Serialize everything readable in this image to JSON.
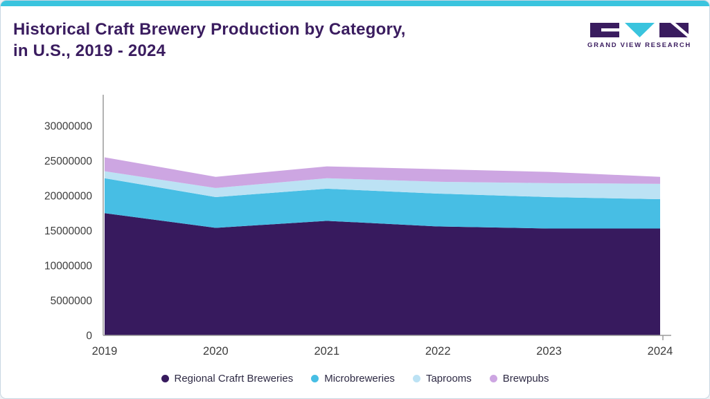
{
  "brand": {
    "purple": "#3a1c5f",
    "cyan": "#3ac4de"
  },
  "header": {
    "title_line1": "Historical Craft Brewery Production by Category,",
    "title_line2": "in U.S., 2019 - 2024",
    "logo_text": "GRAND VIEW RESEARCH"
  },
  "chart_data": {
    "type": "area",
    "stacked": true,
    "title": "Historical Craft Brewery Production by Category, in U.S., 2019 - 2024",
    "x": [
      2019,
      2020,
      2021,
      2022,
      2023,
      2024
    ],
    "series": [
      {
        "name": "Regional Crafrt Breweries",
        "color": "#371a5e",
        "values": [
          17500000,
          15400000,
          16400000,
          15600000,
          15300000,
          15300000
        ]
      },
      {
        "name": "Microbreweries",
        "color": "#47bee4",
        "values": [
          5000000,
          4400000,
          4600000,
          4700000,
          4500000,
          4200000
        ]
      },
      {
        "name": "Taprooms",
        "color": "#bce2f4",
        "values": [
          1000000,
          1300000,
          1500000,
          1700000,
          2000000,
          2200000
        ]
      },
      {
        "name": "Brewpubs",
        "color": "#cda6e2",
        "values": [
          2000000,
          1600000,
          1700000,
          1800000,
          1600000,
          1000000
        ]
      }
    ],
    "xlabel": "",
    "ylabel": "",
    "ylim": [
      0,
      30000000
    ],
    "ytick_step": 5000000,
    "ytick_labels": [
      "0",
      "5000000",
      "10000000",
      "15000000",
      "20000000",
      "25000000",
      "30000000"
    ],
    "grid": false,
    "legend_position": "bottom"
  }
}
